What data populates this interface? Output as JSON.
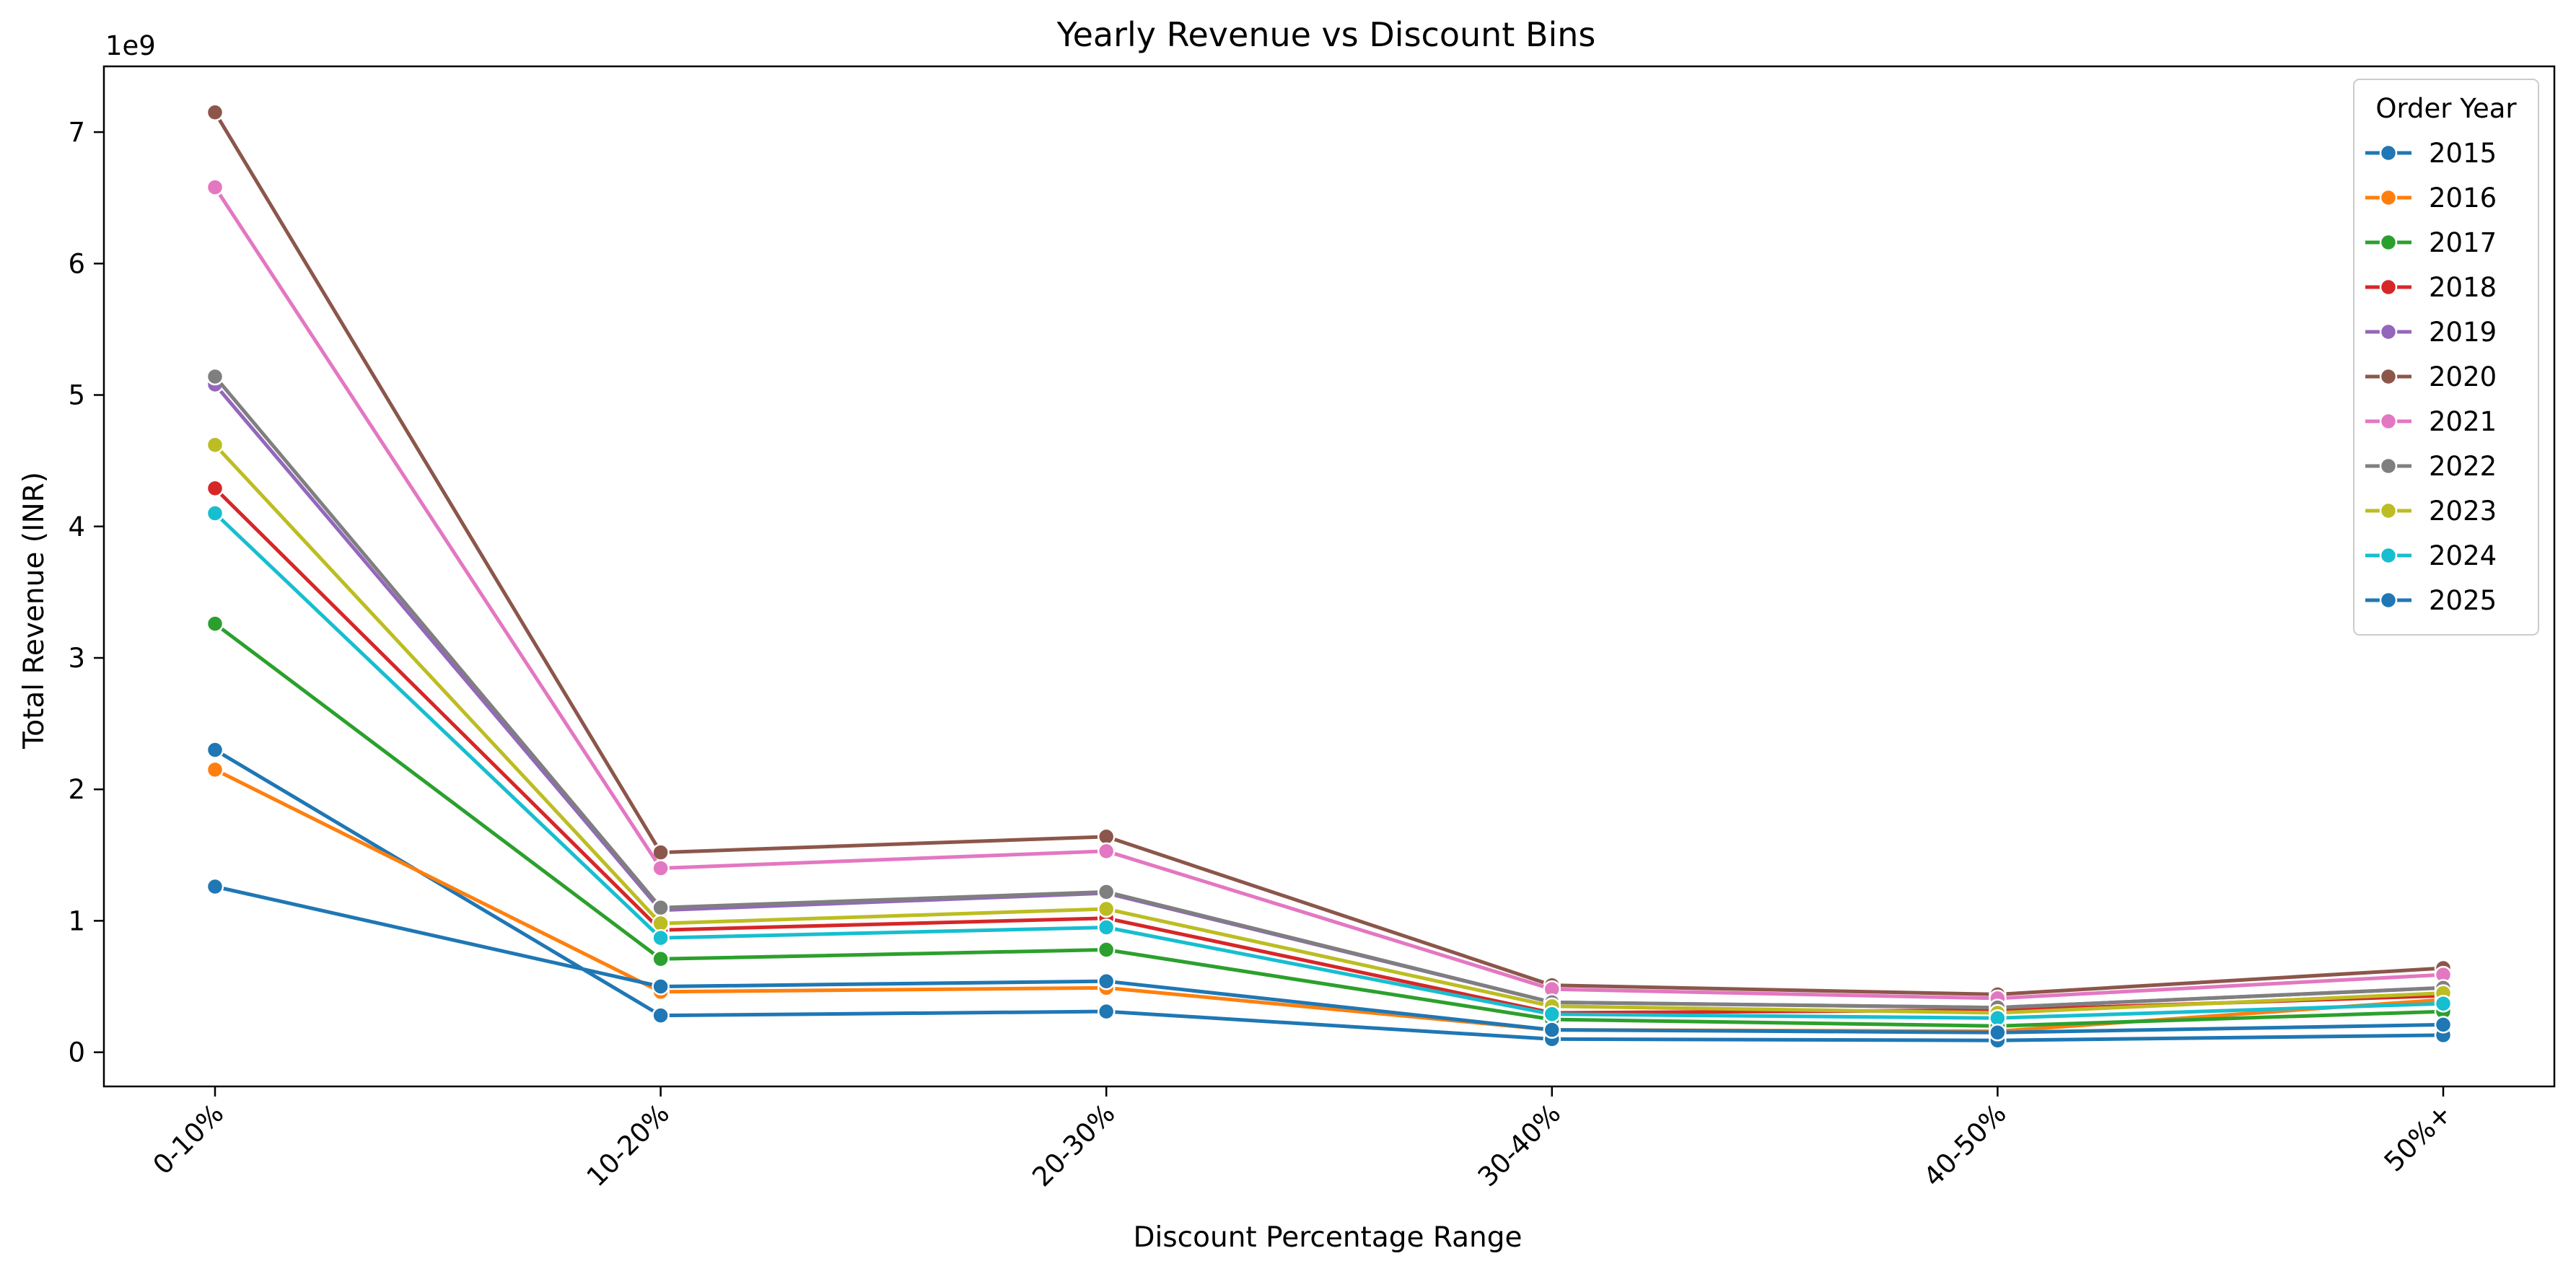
{
  "chart_data": {
    "type": "line",
    "title": "Yearly Revenue vs Discount Bins",
    "xlabel": "Discount Percentage Range",
    "ylabel": "Total Revenue (INR)",
    "y_offset_label": "1e9",
    "categories": [
      "0-10%",
      "10-20%",
      "20-30%",
      "30-40%",
      "40-50%",
      "50%+"
    ],
    "ylim": [
      -0.26,
      7.5
    ],
    "yticks": [
      0,
      1,
      2,
      3,
      4,
      5,
      6,
      7
    ],
    "grid": false,
    "legend": {
      "title": "Order Year",
      "placement": "top-right"
    },
    "series": [
      {
        "name": "2015",
        "color": "#1f77b4",
        "values": [
          2.3,
          0.28,
          0.31,
          0.1,
          0.09,
          0.13
        ]
      },
      {
        "name": "2016",
        "color": "#ff7f0e",
        "values": [
          2.15,
          0.46,
          0.49,
          0.17,
          0.16,
          0.4
        ]
      },
      {
        "name": "2017",
        "color": "#2ca02c",
        "values": [
          3.26,
          0.71,
          0.78,
          0.25,
          0.2,
          0.31
        ]
      },
      {
        "name": "2018",
        "color": "#d62728",
        "values": [
          4.29,
          0.93,
          1.02,
          0.3,
          0.32,
          0.43
        ]
      },
      {
        "name": "2019",
        "color": "#9467bd",
        "values": [
          5.08,
          1.08,
          1.21,
          0.38,
          0.34,
          0.49
        ]
      },
      {
        "name": "2020",
        "color": "#8c564b",
        "values": [
          7.15,
          1.52,
          1.64,
          0.51,
          0.44,
          0.64
        ]
      },
      {
        "name": "2021",
        "color": "#e377c2",
        "values": [
          6.58,
          1.4,
          1.53,
          0.48,
          0.41,
          0.59
        ]
      },
      {
        "name": "2022",
        "color": "#7f7f7f",
        "values": [
          5.14,
          1.1,
          1.22,
          0.38,
          0.34,
          0.49
        ]
      },
      {
        "name": "2023",
        "color": "#bcbd22",
        "values": [
          4.62,
          0.98,
          1.09,
          0.35,
          0.3,
          0.45
        ]
      },
      {
        "name": "2024",
        "color": "#17becf",
        "values": [
          4.1,
          0.87,
          0.95,
          0.29,
          0.26,
          0.37
        ]
      },
      {
        "name": "2025",
        "color": "#1f77b4",
        "values": [
          1.26,
          0.5,
          0.54,
          0.17,
          0.15,
          0.21
        ]
      }
    ]
  }
}
